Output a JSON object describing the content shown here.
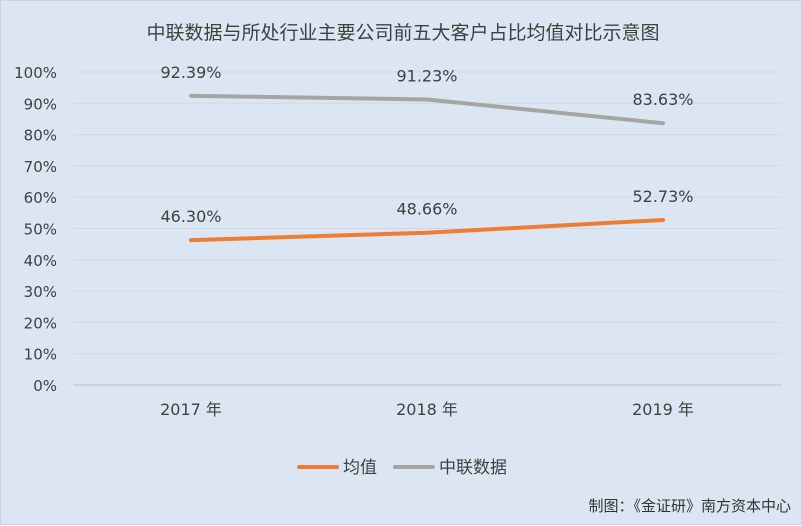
{
  "chart_data": {
    "type": "line",
    "title": "中联数据与所处行业主要公司前五大客户占比均值对比示意图",
    "categories": [
      "2017 年",
      "2018 年",
      "2019 年"
    ],
    "series": [
      {
        "name": "均值",
        "values": [
          46.3,
          48.66,
          52.73
        ],
        "labels": [
          "46.30%",
          "48.66%",
          "52.73%"
        ],
        "color": "#ed7d31"
      },
      {
        "name": "中联数据",
        "values": [
          92.39,
          91.23,
          83.63
        ],
        "labels": [
          "92.39%",
          "91.23%",
          "83.63%"
        ],
        "color": "#a5a5a5"
      }
    ],
    "y_ticks": [
      "0%",
      "10%",
      "20%",
      "30%",
      "40%",
      "50%",
      "60%",
      "70%",
      "80%",
      "90%",
      "100%"
    ],
    "ylim": [
      0,
      100
    ],
    "grid": true,
    "legend_position": "bottom"
  },
  "credit": "制图：《金证研》南方资本中心"
}
